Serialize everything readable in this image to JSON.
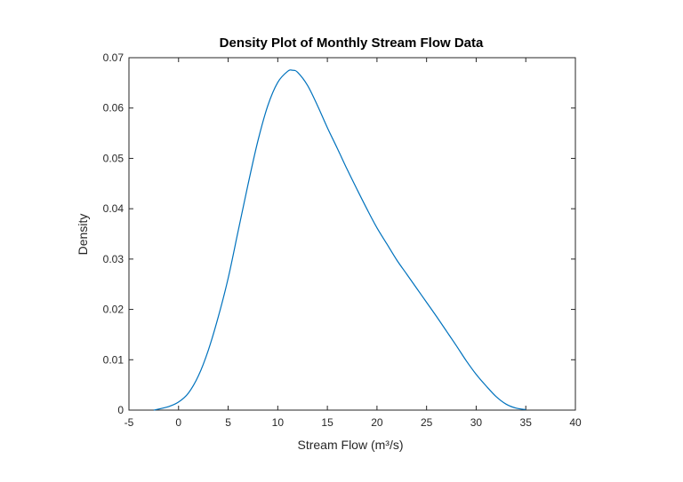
{
  "chart_data": {
    "type": "line",
    "title": "Density Plot of Monthly Stream Flow Data",
    "xlabel": "Stream Flow (m³/s)",
    "ylabel": "Density",
    "xlim": [
      -5,
      40
    ],
    "ylim": [
      0,
      0.07
    ],
    "xticks": [
      "-5",
      "0",
      "5",
      "10",
      "15",
      "20",
      "25",
      "30",
      "35",
      "40"
    ],
    "yticks": [
      "0",
      "0.01",
      "0.02",
      "0.03",
      "0.04",
      "0.05",
      "0.06",
      "0.07"
    ],
    "grid": false,
    "series": [
      {
        "name": "Density",
        "color": "#0072BD",
        "x": [
          -2.5,
          -1,
          0,
          1,
          2,
          3,
          4,
          5,
          6,
          7,
          8,
          9,
          10,
          11,
          11.5,
          12,
          13,
          14,
          15,
          16,
          17,
          18,
          19,
          20,
          21,
          22,
          23,
          24,
          25,
          26,
          27,
          28,
          29,
          30,
          31,
          32,
          33,
          34,
          35
        ],
        "y": [
          0.0,
          0.0007,
          0.0016,
          0.0034,
          0.0068,
          0.0119,
          0.0185,
          0.0262,
          0.0355,
          0.0448,
          0.0535,
          0.0605,
          0.0651,
          0.0673,
          0.0675,
          0.0671,
          0.0645,
          0.0605,
          0.0561,
          0.052,
          0.0478,
          0.0438,
          0.0399,
          0.0362,
          0.033,
          0.0298,
          0.027,
          0.0242,
          0.0214,
          0.0186,
          0.0157,
          0.0128,
          0.0098,
          0.0071,
          0.0048,
          0.0027,
          0.0012,
          0.0004,
          0.0001
        ]
      }
    ]
  }
}
